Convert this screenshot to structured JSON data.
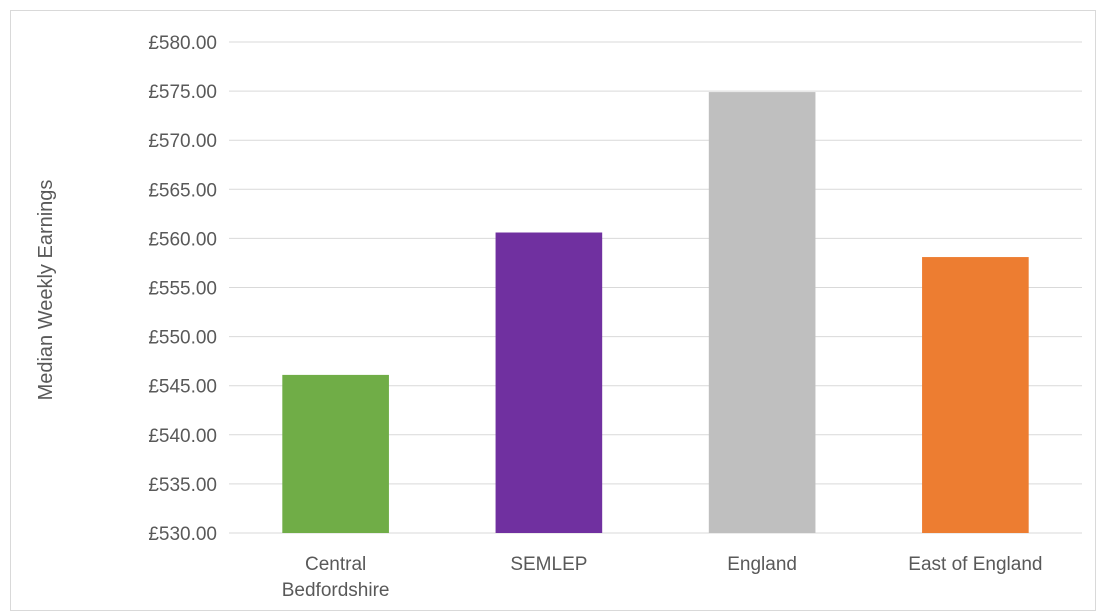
{
  "chart_data": {
    "type": "bar",
    "categories": [
      [
        "Central",
        "Bedfordshire"
      ],
      [
        "SEMLEP"
      ],
      [
        "England"
      ],
      [
        "East of England"
      ]
    ],
    "values": [
      546.1,
      560.6,
      574.9,
      558.1
    ],
    "bar_colors": [
      "#70AD47",
      "#7030A0",
      "#BFBFBF",
      "#ED7D31"
    ],
    "ylabel": "Median Weekly Earnings",
    "xlabel": "",
    "ylim": [
      530,
      580
    ],
    "y_tick_step": 5,
    "y_tick_prefix": "£",
    "y_tick_decimals": 2,
    "grid": true,
    "gridline_color": "#d9d9d9",
    "legend": "none"
  }
}
